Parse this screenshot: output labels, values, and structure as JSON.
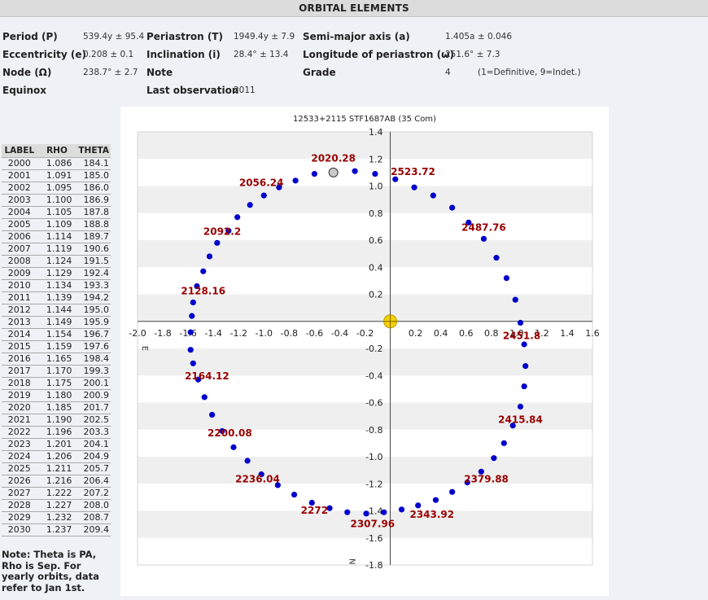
{
  "header": {
    "title": "ORBITAL ELEMENTS"
  },
  "elements": {
    "period_label": "Period (P)",
    "period_value": "539.4y ± 95.4",
    "periastron_label": "Periastron (T)",
    "periastron_value": "1949.4y ± 7.9",
    "semimajor_label": "Semi-major axis (a)",
    "semimajor_value": "1.405a ± 0.046",
    "ecc_label": "Eccentricity (e)",
    "ecc_value": "0.208 ± 0.1",
    "incl_label": "Inclination (i)",
    "incl_value": "28.4° ± 13.4",
    "long_label": "Longitude of periastron (ω)",
    "long_value": "251.6° ± 7.3",
    "node_label": "Node (Ω)",
    "node_value": "238.7° ± 2.7",
    "note_label": "Note",
    "grade_label": "Grade",
    "grade_value": "4",
    "grade_desc": "(1=Definitive, 9=Indet.)",
    "equinox_label": "Equinox",
    "lastobs_label": "Last observation",
    "lastobs_value": "2011"
  },
  "table": {
    "headers": [
      "LABEL",
      "RHO",
      "THETA"
    ],
    "rows": [
      [
        "2000",
        "1.086",
        "184.1"
      ],
      [
        "2001",
        "1.091",
        "185.0"
      ],
      [
        "2002",
        "1.095",
        "186.0"
      ],
      [
        "2003",
        "1.100",
        "186.9"
      ],
      [
        "2004",
        "1.105",
        "187.8"
      ],
      [
        "2005",
        "1.109",
        "188.8"
      ],
      [
        "2006",
        "1.114",
        "189.7"
      ],
      [
        "2007",
        "1.119",
        "190.6"
      ],
      [
        "2008",
        "1.124",
        "191.5"
      ],
      [
        "2009",
        "1.129",
        "192.4"
      ],
      [
        "2010",
        "1.134",
        "193.3"
      ],
      [
        "2011",
        "1.139",
        "194.2"
      ],
      [
        "2012",
        "1.144",
        "195.0"
      ],
      [
        "2013",
        "1.149",
        "195.9"
      ],
      [
        "2014",
        "1.154",
        "196.7"
      ],
      [
        "2015",
        "1.159",
        "197.6"
      ],
      [
        "2016",
        "1.165",
        "198.4"
      ],
      [
        "2017",
        "1.170",
        "199.3"
      ],
      [
        "2018",
        "1.175",
        "200.1"
      ],
      [
        "2019",
        "1.180",
        "200.9"
      ],
      [
        "2020",
        "1.185",
        "201.7"
      ],
      [
        "2021",
        "1.190",
        "202.5"
      ],
      [
        "2022",
        "1.196",
        "203.3"
      ],
      [
        "2023",
        "1.201",
        "204.1"
      ],
      [
        "2024",
        "1.206",
        "204.9"
      ],
      [
        "2025",
        "1.211",
        "205.7"
      ],
      [
        "2026",
        "1.216",
        "206.4"
      ],
      [
        "2027",
        "1.222",
        "207.2"
      ],
      [
        "2028",
        "1.227",
        "208.0"
      ],
      [
        "2029",
        "1.232",
        "208.7"
      ],
      [
        "2030",
        "1.237",
        "209.4"
      ]
    ]
  },
  "note": {
    "text": "Note: Theta is PA, Rho is Sep. For yearly orbits, data refer to Jan 1st."
  },
  "chart_data": {
    "type": "scatter",
    "title": "12533+2115 STF1687AB (35 Com)",
    "xlim": [
      -2.0,
      1.6
    ],
    "ylim": [
      -1.8,
      1.4
    ],
    "x_ticks": [
      "-2.0",
      "-1.8",
      "-1.6",
      "-1.4",
      "-1.2",
      "-1.0",
      "-0.8",
      "-0.6",
      "-0.4",
      "-0.2",
      "0.2",
      "0.4",
      "0.6",
      "0.8",
      "1.0",
      "1.2",
      "1.4",
      "1.6"
    ],
    "y_ticks": [
      "1.4",
      "1.2",
      "1.0",
      "0.8",
      "0.6",
      "0.4",
      "0.2",
      "-0.2",
      "-0.4",
      "-0.6",
      "-0.8",
      "-1.0",
      "-1.2",
      "-1.4",
      "-1.6",
      "-1.8"
    ],
    "x_axis_label": "E",
    "y_axis_label": "N",
    "grid": "alternating horizontal bands",
    "primary_star": {
      "x": 0,
      "y": 0,
      "color": "#f5d000"
    },
    "current_position": {
      "x": -0.45,
      "y": 1.1,
      "color": "#c8c8c8"
    },
    "orbit_color": "#0000cc",
    "label_color": "#990000",
    "orbit_points": [
      [
        0.04,
        1.05
      ],
      [
        0.19,
        0.99
      ],
      [
        0.34,
        0.93
      ],
      [
        0.49,
        0.84
      ],
      [
        0.62,
        0.73
      ],
      [
        0.74,
        0.61
      ],
      [
        0.84,
        0.47
      ],
      [
        0.92,
        0.32
      ],
      [
        0.99,
        0.16
      ],
      [
        1.03,
        -0.01
      ],
      [
        1.06,
        -0.17
      ],
      [
        1.07,
        -0.33
      ],
      [
        1.06,
        -0.48
      ],
      [
        1.03,
        -0.63
      ],
      [
        0.97,
        -0.77
      ],
      [
        0.9,
        -0.9
      ],
      [
        0.82,
        -1.01
      ],
      [
        0.72,
        -1.11
      ],
      [
        0.61,
        -1.19
      ],
      [
        0.49,
        -1.26
      ],
      [
        0.36,
        -1.32
      ],
      [
        0.22,
        -1.36
      ],
      [
        0.09,
        -1.39
      ],
      [
        -0.05,
        -1.41
      ],
      [
        -0.19,
        -1.42
      ],
      [
        -0.34,
        -1.41
      ],
      [
        -0.48,
        -1.38
      ],
      [
        -0.62,
        -1.34
      ],
      [
        -0.76,
        -1.28
      ],
      [
        -0.89,
        -1.21
      ],
      [
        -1.02,
        -1.13
      ],
      [
        -1.13,
        -1.03
      ],
      [
        -1.24,
        -0.93
      ],
      [
        -1.33,
        -0.81
      ],
      [
        -1.41,
        -0.69
      ],
      [
        -1.47,
        -0.56
      ],
      [
        -1.52,
        -0.43
      ],
      [
        -1.56,
        -0.31
      ],
      [
        -1.58,
        -0.21
      ],
      [
        -1.58,
        -0.08
      ],
      [
        -1.57,
        0.04
      ],
      [
        -1.56,
        0.14
      ],
      [
        -1.53,
        0.26
      ],
      [
        -1.48,
        0.37
      ],
      [
        -1.43,
        0.48
      ],
      [
        -1.37,
        0.58
      ],
      [
        -1.28,
        0.67
      ],
      [
        -1.21,
        0.77
      ],
      [
        -1.11,
        0.86
      ],
      [
        -1.0,
        0.93
      ],
      [
        -0.88,
        0.99
      ],
      [
        -0.75,
        1.04
      ],
      [
        -0.6,
        1.09
      ],
      [
        -0.28,
        1.11
      ],
      [
        -0.12,
        1.09
      ]
    ],
    "year_labels": [
      {
        "text": "2020.28",
        "x": -0.45,
        "y": 1.18
      },
      {
        "text": "2523.72",
        "x": 0.18,
        "y": 1.08
      },
      {
        "text": "2056.24",
        "x": -1.02,
        "y": 1.0
      },
      {
        "text": "2487.76",
        "x": 0.74,
        "y": 0.67
      },
      {
        "text": "2092.2",
        "x": -1.33,
        "y": 0.64
      },
      {
        "text": "2128.16",
        "x": -1.48,
        "y": 0.2
      },
      {
        "text": "2451.8",
        "x": 1.04,
        "y": -0.13
      },
      {
        "text": "2164.12",
        "x": -1.45,
        "y": -0.43
      },
      {
        "text": "2415.84",
        "x": 1.03,
        "y": -0.75
      },
      {
        "text": "2200.08",
        "x": -1.27,
        "y": -0.85
      },
      {
        "text": "2379.88",
        "x": 0.76,
        "y": -1.19
      },
      {
        "text": "2236.04",
        "x": -1.05,
        "y": -1.19
      },
      {
        "text": "2272",
        "x": -0.6,
        "y": -1.42
      },
      {
        "text": "2307.96",
        "x": -0.14,
        "y": -1.52
      },
      {
        "text": "2343.92",
        "x": 0.33,
        "y": -1.45
      }
    ]
  }
}
